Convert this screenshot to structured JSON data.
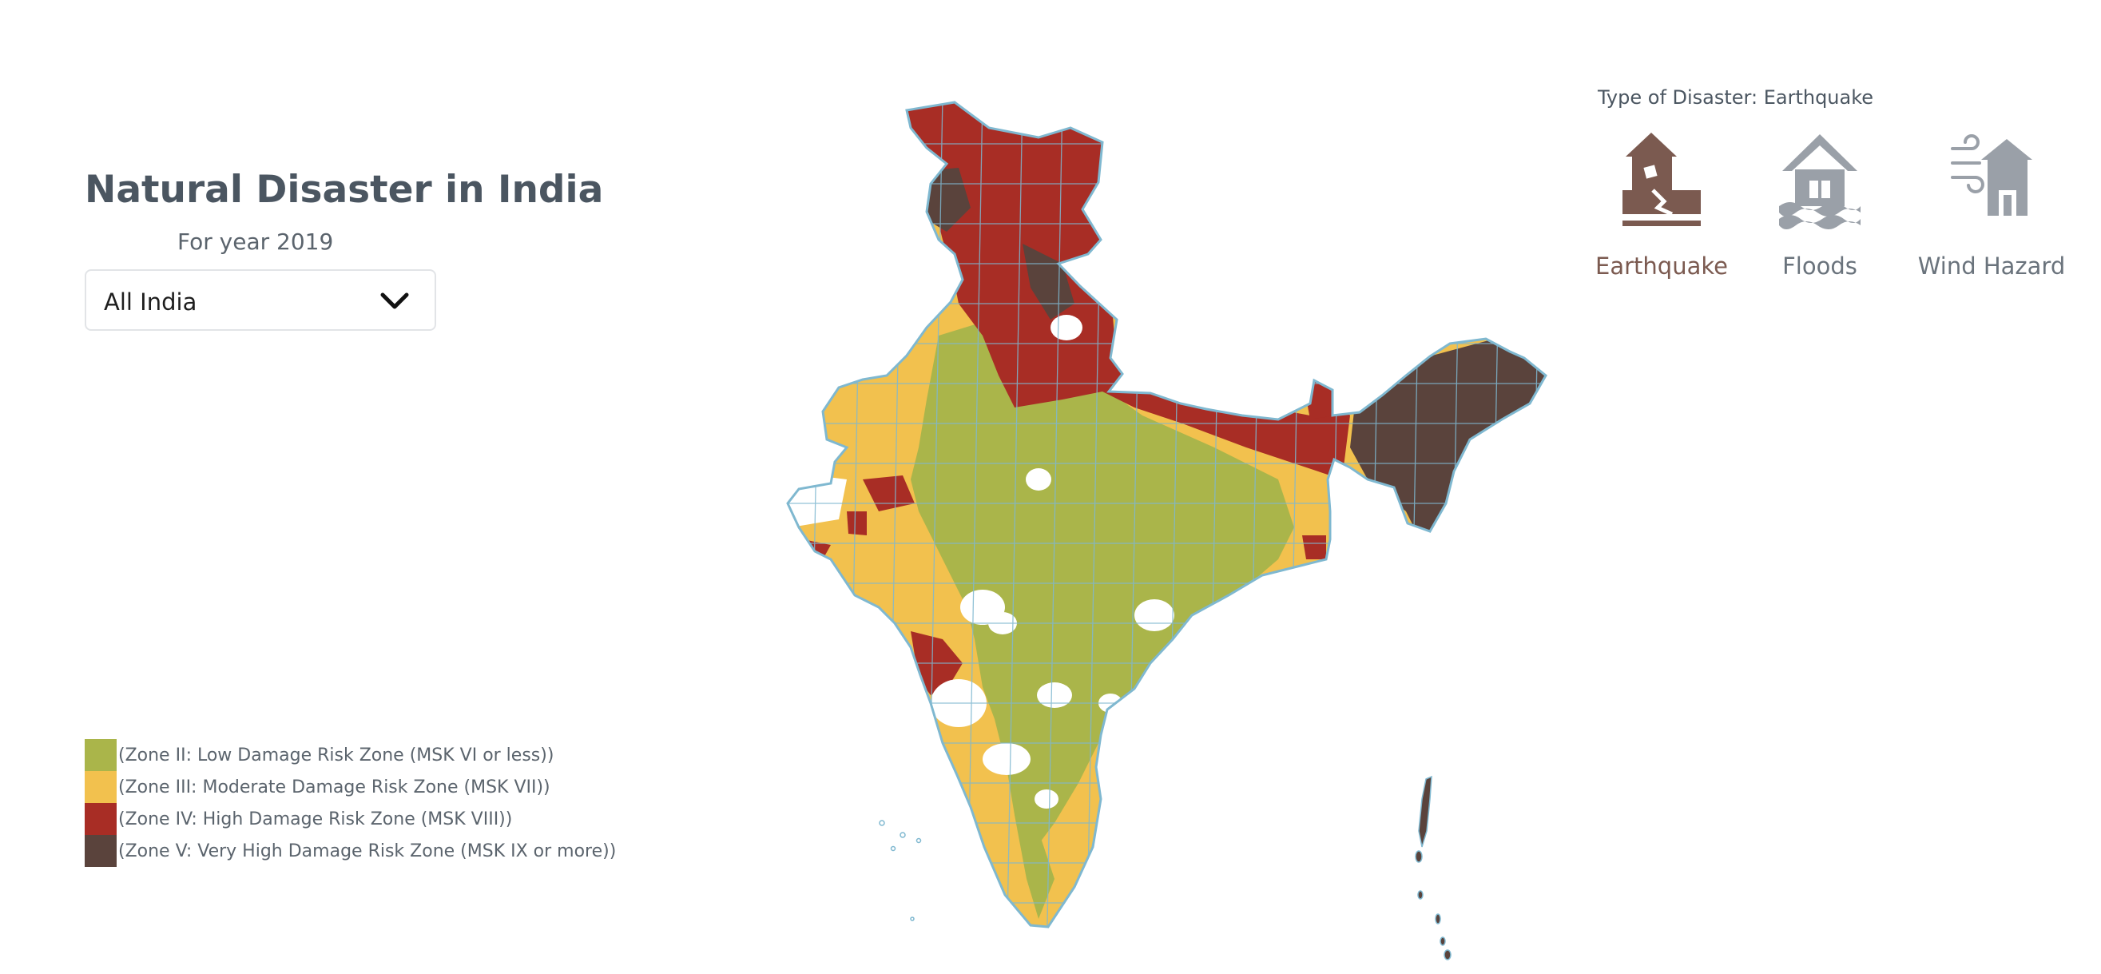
{
  "header": {
    "title": "Natural Disaster in India",
    "year_label": "For year 2019"
  },
  "region_select": {
    "selected": "All India"
  },
  "disaster_selector": {
    "heading": "Type of Disaster: Earthquake",
    "options": [
      {
        "label": "Earthquake",
        "icon": "earthquake-house-icon",
        "active": true
      },
      {
        "label": "Floods",
        "icon": "flooded-house-icon",
        "active": false
      },
      {
        "label": "Wind Hazard",
        "icon": "wind-house-icon",
        "active": false
      }
    ],
    "active_color": "#7b5a50",
    "inactive_color": "#9aa0a8"
  },
  "legend": [
    {
      "label": "(Zone II: Low Damage Risk Zone (MSK VI or less))",
      "color": "#aab54a"
    },
    {
      "label": "(Zone III: Moderate Damage Risk Zone (MSK VII))",
      "color": "#f2c14e"
    },
    {
      "label": "(Zone IV: High Damage Risk Zone (MSK VIII))",
      "color": "#a82d25"
    },
    {
      "label": "(Zone V: Very High Damage Risk Zone (MSK IX or more))",
      "color": "#5a433c"
    }
  ],
  "map": {
    "border_color": "#7fb8d0",
    "no_data_color": "#ffffff"
  }
}
